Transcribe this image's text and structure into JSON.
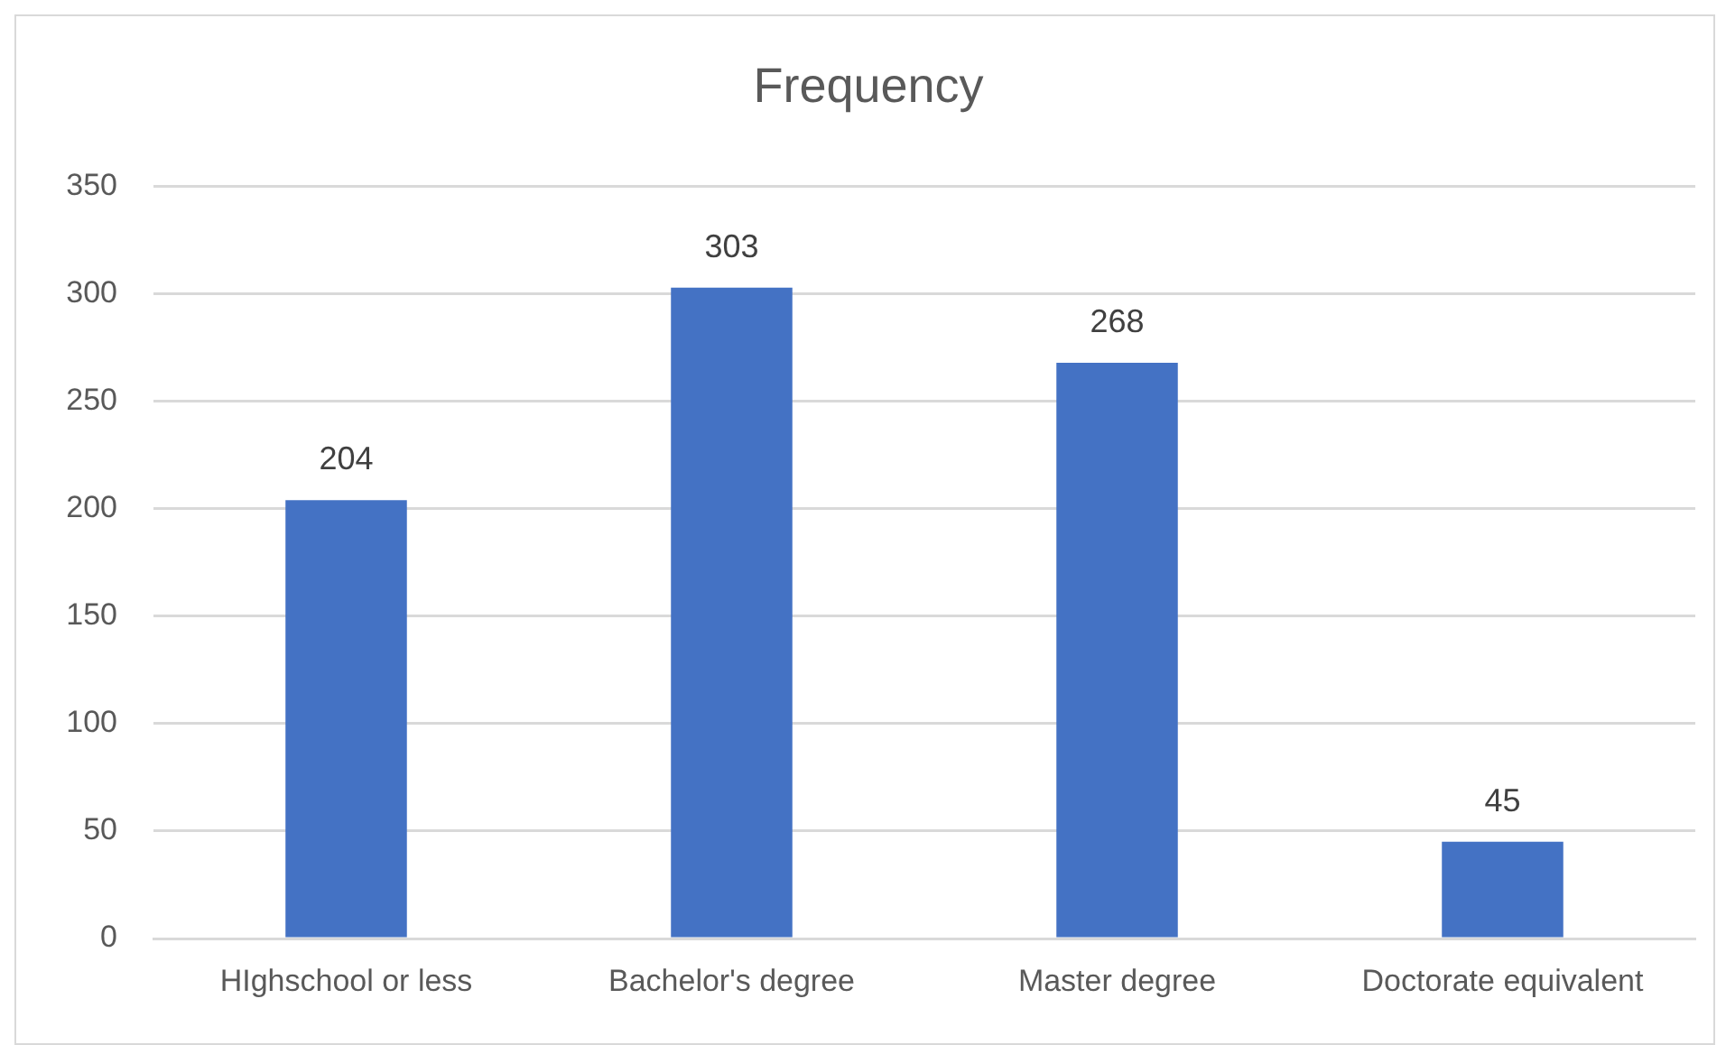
{
  "chart_data": {
    "type": "bar",
    "title": "Frequency",
    "categories": [
      "HIghschool or less",
      "Bachelor's degree",
      "Master degree",
      "Doctorate equivalent"
    ],
    "values": [
      204,
      303,
      268,
      45
    ],
    "color": "#4472c4",
    "ylim": [
      0,
      350
    ],
    "yticks": [
      0,
      50,
      100,
      150,
      200,
      250,
      300,
      350
    ],
    "grid": "y",
    "data_labels": true
  }
}
